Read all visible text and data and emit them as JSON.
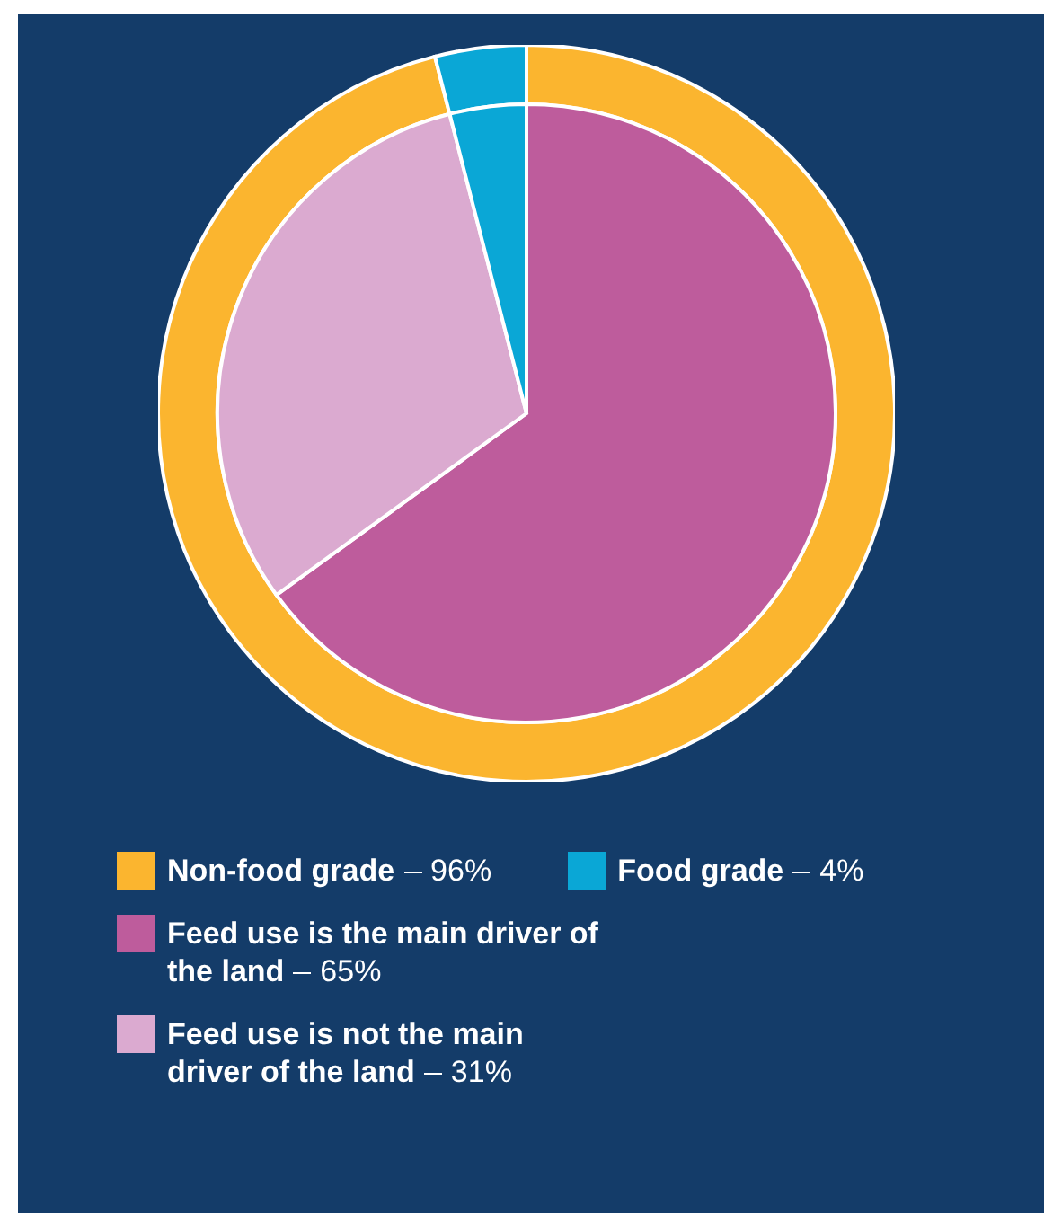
{
  "chart_data": [
    {
      "type": "donut",
      "categories": [
        "Non-food grade",
        "Food grade"
      ],
      "values": [
        96,
        4
      ],
      "colors": [
        "#fbb52f",
        "#0aa7d6"
      ],
      "value_labels": [
        "96%",
        "4%"
      ],
      "legend": "bottom"
    },
    {
      "type": "pie",
      "categories": [
        "Feed use is the main driver of the land",
        "Feed use is not the main driver of the land",
        null
      ],
      "values": [
        65,
        31,
        4
      ],
      "colors": [
        "#be5c9c",
        "#dbaad0",
        "#0aa7d6"
      ],
      "value_labels": [
        "65%",
        "31%",
        null
      ],
      "legend": "bottom"
    }
  ]
}
